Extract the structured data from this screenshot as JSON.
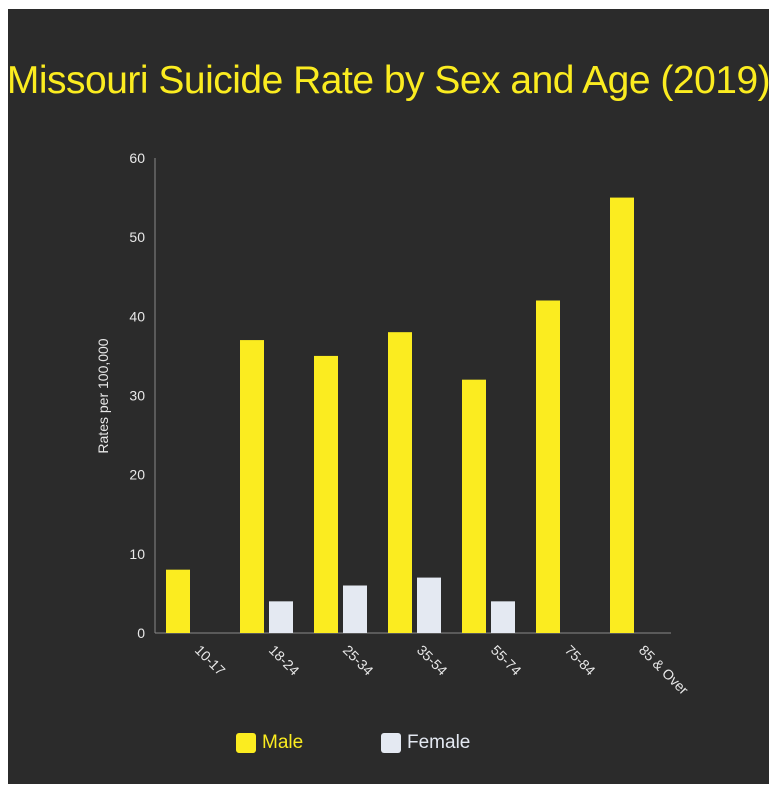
{
  "chart_data": {
    "type": "bar",
    "title": "Missouri Suicide Rate by Sex and Age (2019)",
    "xlabel": "",
    "ylabel": "Rates per 100,000",
    "ylim": [
      0,
      60
    ],
    "yticks": [
      "0",
      "10",
      "20",
      "30",
      "40",
      "50",
      "60"
    ],
    "categories": [
      "10-17",
      "18-24",
      "25-34",
      "35-54",
      "55-74",
      "75-84",
      "85 & Over"
    ],
    "series": [
      {
        "name": "Male",
        "color": "#fbec20",
        "values": [
          8,
          37,
          35,
          38,
          32,
          42,
          55
        ]
      },
      {
        "name": "Female",
        "color": "#e4e9f2",
        "values": [
          null,
          4,
          6,
          7,
          4,
          null,
          null
        ]
      }
    ],
    "legend_position": "bottom",
    "grid": false
  }
}
